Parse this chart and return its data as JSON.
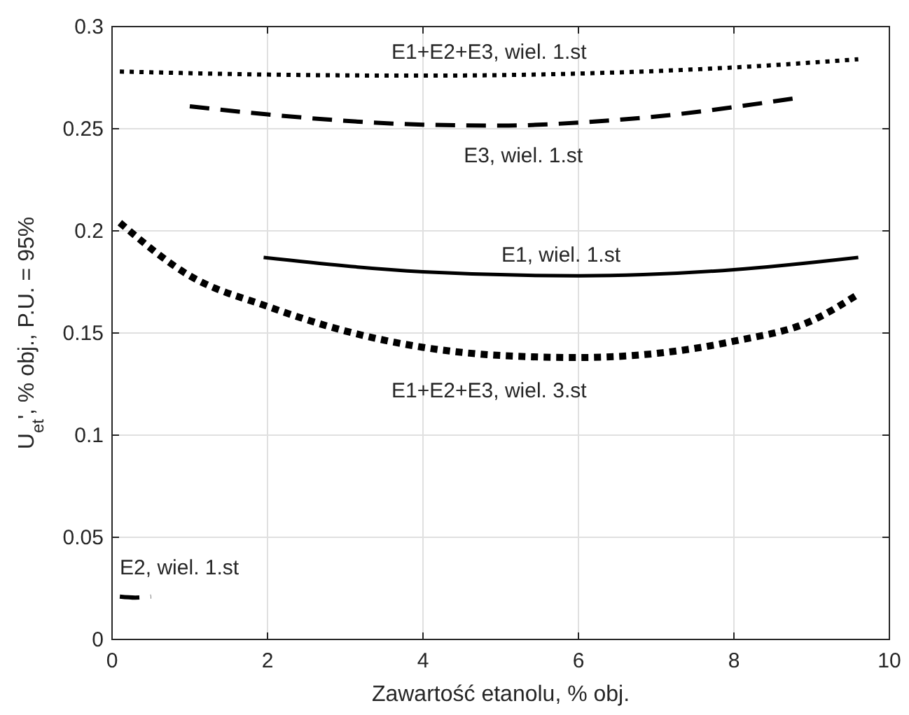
{
  "chart_data": {
    "type": "line",
    "xlabel": "Zawartość etanolu, % obj.",
    "ylabel": "U$_{et}$', % obj., P.U. = 95%",
    "xlim": [
      0,
      10
    ],
    "xticks": [
      0,
      2,
      4,
      6,
      8,
      10
    ],
    "ylim": [
      0,
      0.3
    ],
    "yticks": [
      0,
      0.05,
      0.1,
      0.15,
      0.2,
      0.25,
      0.3
    ],
    "grid": true,
    "series": [
      {
        "name": "E1+E2+E3, wiel. 1.st",
        "color": "#000000",
        "line_style": "dotted",
        "x": [
          0.1,
          2,
          4,
          6,
          8,
          9.6
        ],
        "values": [
          0.278,
          0.2765,
          0.276,
          0.277,
          0.28,
          0.284
        ]
      },
      {
        "name": "E3, wiel. 1.st",
        "color": "#000000",
        "line_style": "dashed",
        "x": [
          1,
          2,
          4,
          5,
          6,
          7,
          8.8
        ],
        "values": [
          0.261,
          0.257,
          0.252,
          0.2515,
          0.253,
          0.256,
          0.265
        ]
      },
      {
        "name": "E1, wiel. 1.st",
        "color": "#000000",
        "line_style": "solid",
        "x": [
          1.95,
          4,
          6,
          8,
          9.6
        ],
        "values": [
          0.187,
          0.18,
          0.178,
          0.181,
          0.187
        ]
      },
      {
        "name": "E1+E2+E3, wiel. 3.st",
        "color": "#000000",
        "line_style": "dotted",
        "x": [
          0.1,
          1,
          2,
          3,
          4,
          5,
          6,
          7,
          8,
          9,
          9.6
        ],
        "values": [
          0.204,
          0.178,
          0.163,
          0.151,
          0.143,
          0.139,
          0.138,
          0.14,
          0.146,
          0.156,
          0.169
        ]
      },
      {
        "name": "E2, wiel. 1.st",
        "color": "#000000",
        "line_style": "dashed",
        "x": [
          0.1,
          0.3,
          0.5
        ],
        "values": [
          0.021,
          0.0205,
          0.021
        ]
      }
    ]
  }
}
